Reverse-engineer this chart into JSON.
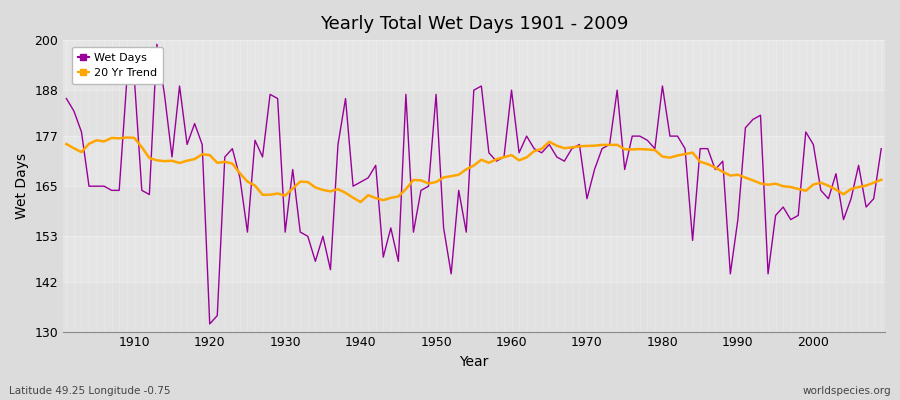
{
  "title": "Yearly Total Wet Days 1901 - 2009",
  "xlabel": "Year",
  "ylabel": "Wet Days",
  "subtitle": "Latitude 49.25 Longitude -0.75",
  "watermark": "worldspecies.org",
  "ylim": [
    130,
    200
  ],
  "yticks": [
    130,
    142,
    153,
    165,
    177,
    188,
    200
  ],
  "xlim": [
    1901,
    2009
  ],
  "xticks": [
    1910,
    1920,
    1930,
    1940,
    1950,
    1960,
    1970,
    1980,
    1990,
    2000
  ],
  "line_color": "#990099",
  "trend_color": "#FFA500",
  "bg_color": "#DCDCDC",
  "ax_bg_color": "#E8E8E8",
  "wet_days": [
    186,
    183,
    178,
    165,
    165,
    165,
    164,
    164,
    190,
    191,
    164,
    163,
    199,
    187,
    172,
    189,
    175,
    180,
    175,
    132,
    134,
    172,
    174,
    167,
    154,
    176,
    172,
    187,
    186,
    154,
    169,
    154,
    153,
    147,
    153,
    145,
    175,
    186,
    165,
    166,
    167,
    170,
    148,
    155,
    147,
    187,
    154,
    164,
    165,
    187,
    155,
    144,
    164,
    154,
    188,
    189,
    173,
    171,
    172,
    188,
    173,
    177,
    174,
    173,
    175,
    172,
    171,
    174,
    175,
    162,
    169,
    174,
    175,
    188,
    169,
    177,
    177,
    176,
    174,
    189,
    177,
    177,
    174,
    152,
    174,
    174,
    169,
    171,
    144,
    157,
    179,
    181,
    182,
    144,
    158,
    160,
    157,
    158,
    178,
    175,
    164,
    162,
    168,
    157,
    162,
    170,
    160,
    162,
    174
  ],
  "years": [
    1901,
    1902,
    1903,
    1904,
    1905,
    1906,
    1907,
    1908,
    1909,
    1910,
    1911,
    1912,
    1913,
    1914,
    1915,
    1916,
    1917,
    1918,
    1919,
    1920,
    1921,
    1922,
    1923,
    1924,
    1925,
    1926,
    1927,
    1928,
    1929,
    1930,
    1931,
    1932,
    1933,
    1934,
    1935,
    1936,
    1937,
    1938,
    1939,
    1940,
    1941,
    1942,
    1943,
    1944,
    1945,
    1946,
    1947,
    1948,
    1949,
    1950,
    1951,
    1952,
    1953,
    1954,
    1955,
    1956,
    1957,
    1958,
    1959,
    1960,
    1961,
    1962,
    1963,
    1964,
    1965,
    1966,
    1967,
    1968,
    1969,
    1970,
    1971,
    1972,
    1973,
    1974,
    1975,
    1976,
    1977,
    1978,
    1979,
    1980,
    1981,
    1982,
    1983,
    1984,
    1985,
    1986,
    1987,
    1988,
    1989,
    1990,
    1991,
    1992,
    1993,
    1994,
    1995,
    1996,
    1997,
    1998,
    1999,
    2000,
    2001,
    2002,
    2003,
    2004,
    2005,
    2006,
    2007,
    2008,
    2009
  ]
}
